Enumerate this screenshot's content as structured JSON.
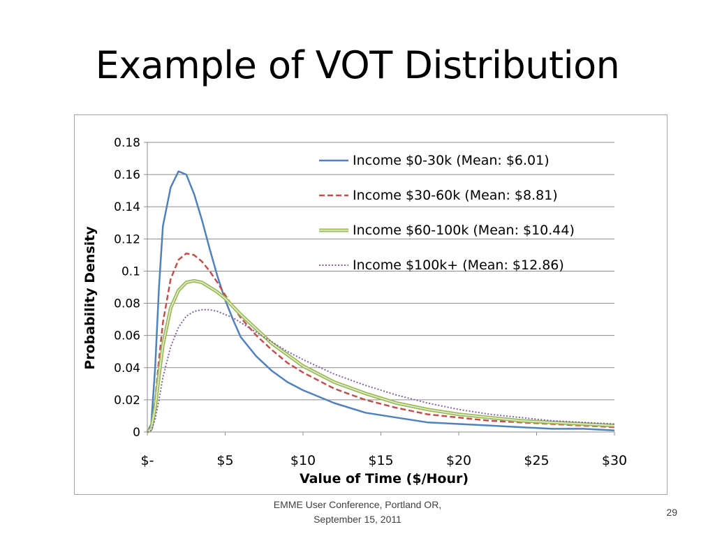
{
  "slide": {
    "title": "Example of VOT Distribution",
    "footer_line1": "EMME User Conference, Portland OR,",
    "footer_line2": "September 15, 2011",
    "page_number": "29"
  },
  "chart_data": {
    "type": "line",
    "xlabel": "Value of Time ($/Hour)",
    "ylabel": "Probability Density",
    "xlim": [
      0,
      30
    ],
    "ylim": [
      0,
      0.18
    ],
    "grid": true,
    "legend_position": "top-right",
    "x_ticks": [
      {
        "value": 0,
        "label": "$-"
      },
      {
        "value": 5,
        "label": "$5"
      },
      {
        "value": 10,
        "label": "$10"
      },
      {
        "value": 15,
        "label": "$15"
      },
      {
        "value": 20,
        "label": "$20"
      },
      {
        "value": 25,
        "label": "$25"
      },
      {
        "value": 30,
        "label": "$30"
      }
    ],
    "y_ticks": [
      {
        "value": 0,
        "label": "0"
      },
      {
        "value": 0.02,
        "label": "0.02"
      },
      {
        "value": 0.04,
        "label": "0.04"
      },
      {
        "value": 0.06,
        "label": "0.06"
      },
      {
        "value": 0.08,
        "label": "0.08"
      },
      {
        "value": 0.1,
        "label": "0.1"
      },
      {
        "value": 0.12,
        "label": "0.12"
      },
      {
        "value": 0.14,
        "label": "0.14"
      },
      {
        "value": 0.16,
        "label": "0.16"
      },
      {
        "value": 0.18,
        "label": "0.18"
      }
    ],
    "series": [
      {
        "name": "Income $0-30k (Mean: $6.01)",
        "color": "#4f81bd",
        "style": "solid",
        "x": [
          0,
          0.25,
          0.5,
          0.75,
          1,
          1.5,
          2,
          2.5,
          3,
          3.5,
          4,
          4.5,
          5,
          5.5,
          6,
          7,
          8,
          9,
          10,
          12,
          14,
          16,
          18,
          20,
          22,
          24,
          26,
          28,
          30
        ],
        "y": [
          0,
          0.005,
          0.04,
          0.09,
          0.128,
          0.152,
          0.162,
          0.16,
          0.148,
          0.132,
          0.114,
          0.097,
          0.082,
          0.07,
          0.059,
          0.047,
          0.038,
          0.031,
          0.026,
          0.018,
          0.012,
          0.009,
          0.006,
          0.005,
          0.004,
          0.003,
          0.002,
          0.002,
          0.001
        ]
      },
      {
        "name": "Income $30-60k (Mean: $8.81)",
        "color": "#c0504d",
        "style": "dashed",
        "x": [
          0,
          0.25,
          0.5,
          0.75,
          1,
          1.5,
          2,
          2.5,
          3,
          3.5,
          4,
          4.5,
          5,
          5.5,
          6,
          7,
          8,
          9,
          10,
          12,
          14,
          16,
          18,
          20,
          22,
          24,
          26,
          28,
          30
        ],
        "y": [
          0,
          0.003,
          0.02,
          0.045,
          0.068,
          0.095,
          0.107,
          0.111,
          0.11,
          0.106,
          0.1,
          0.093,
          0.085,
          0.078,
          0.071,
          0.06,
          0.051,
          0.043,
          0.037,
          0.027,
          0.02,
          0.015,
          0.011,
          0.009,
          0.007,
          0.006,
          0.005,
          0.004,
          0.003
        ]
      },
      {
        "name": "Income $60-100k (Mean: $10.44)",
        "color": "#9bbb59",
        "style": "double",
        "x": [
          0,
          0.25,
          0.5,
          0.75,
          1,
          1.5,
          2,
          2.5,
          3,
          3.5,
          4,
          4.5,
          5,
          5.5,
          6,
          7,
          8,
          9,
          10,
          12,
          14,
          16,
          18,
          20,
          22,
          24,
          26,
          28,
          30
        ],
        "y": [
          0,
          0.002,
          0.015,
          0.035,
          0.054,
          0.077,
          0.088,
          0.093,
          0.094,
          0.093,
          0.09,
          0.087,
          0.083,
          0.078,
          0.073,
          0.064,
          0.055,
          0.048,
          0.041,
          0.031,
          0.024,
          0.018,
          0.014,
          0.011,
          0.009,
          0.007,
          0.006,
          0.005,
          0.004
        ]
      },
      {
        "name": "Income $100k+ (Mean: $12.86)",
        "color": "#8064a2",
        "style": "dotted",
        "x": [
          0,
          0.25,
          0.5,
          0.75,
          1,
          1.5,
          2,
          2.5,
          3,
          3.5,
          4,
          4.5,
          5,
          5.5,
          6,
          7,
          8,
          9,
          10,
          12,
          14,
          16,
          18,
          20,
          22,
          24,
          26,
          28,
          30
        ],
        "y": [
          0,
          0.001,
          0.008,
          0.02,
          0.034,
          0.053,
          0.065,
          0.072,
          0.075,
          0.076,
          0.076,
          0.075,
          0.073,
          0.071,
          0.068,
          0.062,
          0.056,
          0.05,
          0.045,
          0.036,
          0.029,
          0.023,
          0.018,
          0.014,
          0.011,
          0.009,
          0.007,
          0.006,
          0.005
        ]
      }
    ]
  }
}
